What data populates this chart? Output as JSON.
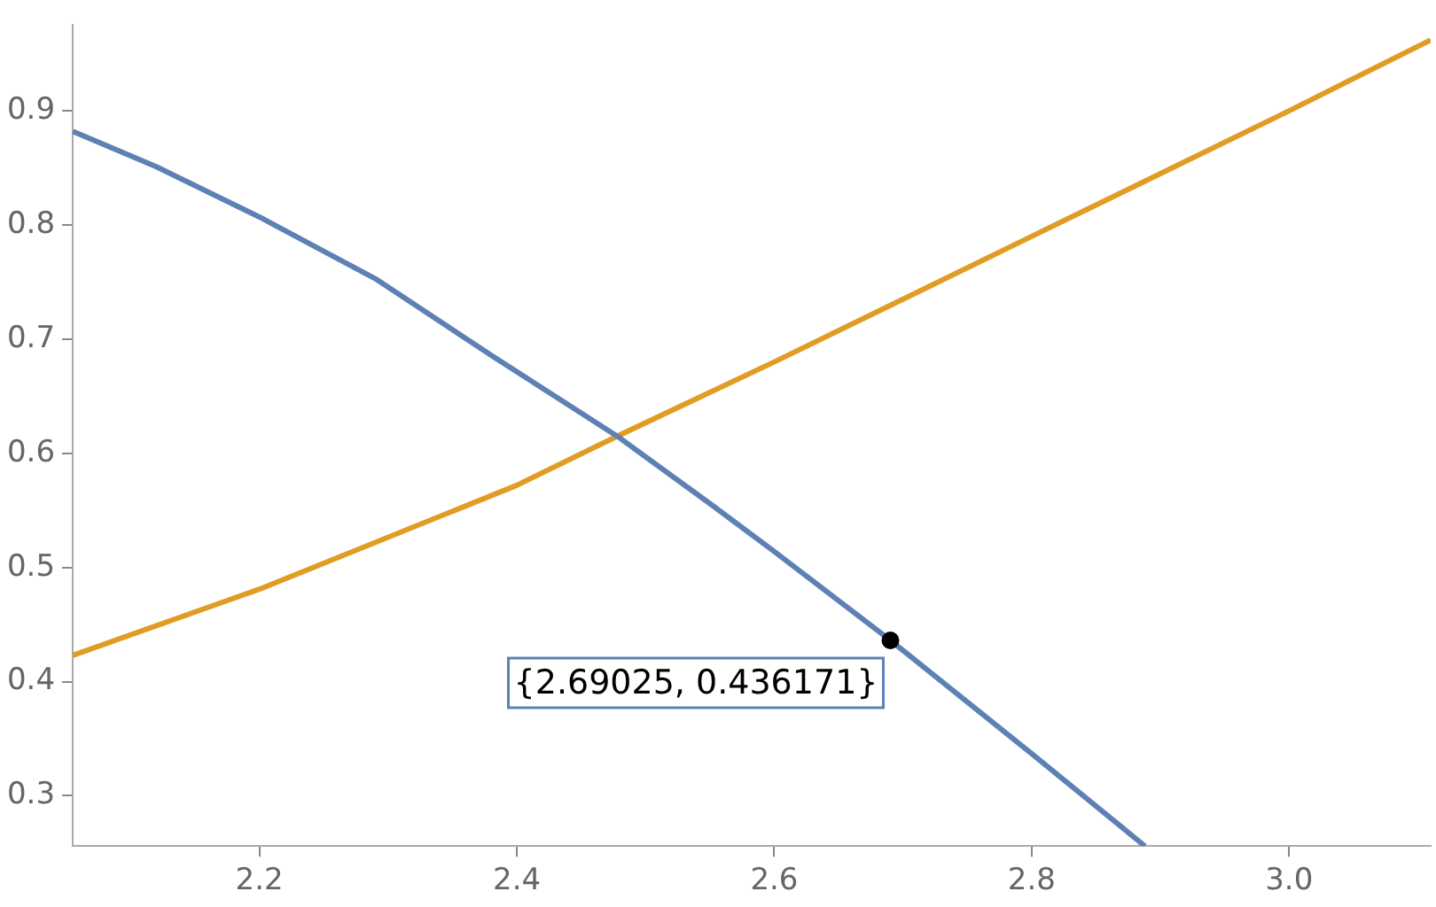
{
  "chart_data": {
    "type": "line",
    "xlim": [
      2.055,
      3.11
    ],
    "ylim": [
      0.256,
      0.975
    ],
    "xticks": [
      {
        "value": 2.2,
        "label": "2.2"
      },
      {
        "value": 2.4,
        "label": "2.4"
      },
      {
        "value": 2.6,
        "label": "2.6"
      },
      {
        "value": 2.8,
        "label": "2.8"
      },
      {
        "value": 3.0,
        "label": "3.0"
      }
    ],
    "yticks": [
      0.3,
      0.4,
      0.5,
      0.6,
      0.7,
      0.8,
      0.9
    ],
    "grid": false,
    "legend": false,
    "marker": "none",
    "line_style": "solid",
    "series": [
      {
        "color": "#5e81b5",
        "x": [
          2.055,
          2.12,
          2.2,
          2.29,
          2.38,
          2.478,
          2.55,
          2.6,
          2.69025,
          2.8,
          2.888
        ],
        "values": [
          0.882,
          0.851,
          0.807,
          0.753,
          0.686,
          0.615,
          0.556,
          0.514,
          0.436171,
          0.337,
          0.256
        ]
      },
      {
        "color": "#e19c24",
        "x": [
          2.055,
          2.2,
          2.4,
          2.478,
          2.6,
          2.8,
          3.0,
          3.11
        ],
        "values": [
          0.423,
          0.481,
          0.572,
          0.615,
          0.68,
          0.79,
          0.9,
          0.962
        ]
      }
    ],
    "annotations": [
      {
        "text": "{2.69025, 0.436171}",
        "x": 2.69025,
        "y": 0.436171
      }
    ]
  }
}
